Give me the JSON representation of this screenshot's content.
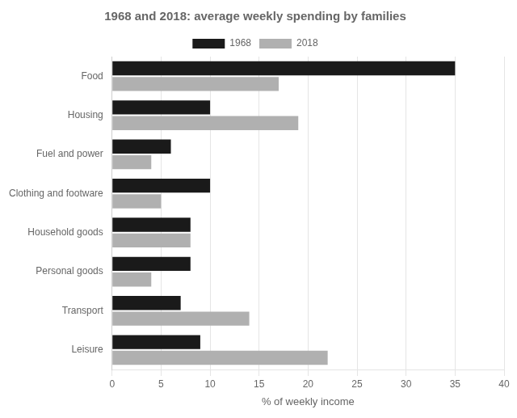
{
  "chart_data": {
    "type": "bar",
    "orientation": "horizontal",
    "title": "1968 and 2018: average weekly spending by families",
    "categories": [
      "Food",
      "Housing",
      "Fuel and power",
      "Clothing and footware",
      "Household goods",
      "Personal goods",
      "Transport",
      "Leisure"
    ],
    "series": [
      {
        "name": "1968",
        "color": "#1a1a1a",
        "values": [
          35,
          10,
          6,
          10,
          8,
          8,
          7,
          9
        ]
      },
      {
        "name": "2018",
        "color": "#b0b0b0",
        "values": [
          17,
          19,
          4,
          5,
          8,
          4,
          14,
          22
        ]
      }
    ],
    "xlabel": "% of weekly income",
    "xlim": [
      0,
      40
    ],
    "xticks": [
      0,
      5,
      10,
      15,
      20,
      25,
      30,
      35,
      40
    ],
    "grid": "x",
    "legend": "top"
  }
}
